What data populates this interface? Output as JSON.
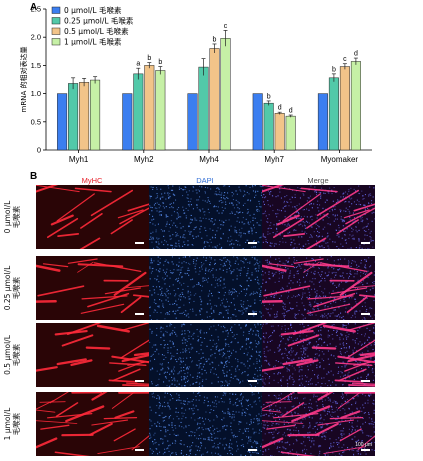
{
  "panelA": {
    "label": "A",
    "chart_data": {
      "type": "bar",
      "ylabel": "mRNA 的相对表达量",
      "ylim": [
        0,
        2.5
      ],
      "yticks": [
        "0",
        "0.5",
        "1.0",
        "1.5",
        "2.0",
        "2.5"
      ],
      "categories": [
        "Myh1",
        "Myh2",
        "Myh4",
        "Myh7",
        "Myomaker"
      ],
      "legend_position": "top-left",
      "series": [
        {
          "name": "0 μmol/L 毛喉素",
          "color": "#3b7ef0",
          "values": [
            1.0,
            1.0,
            1.0,
            1.0,
            1.0
          ],
          "errors": [
            0,
            0,
            0,
            0,
            0
          ],
          "sig": [
            "",
            "",
            "",
            "",
            ""
          ]
        },
        {
          "name": "0.25 μmol/L 毛喉素",
          "color": "#52c9a9",
          "values": [
            1.18,
            1.35,
            1.47,
            0.83,
            1.28
          ],
          "errors": [
            0.1,
            0.1,
            0.15,
            0.04,
            0.07
          ],
          "sig": [
            "",
            "a",
            "",
            "b",
            "b"
          ]
        },
        {
          "name": "0.5 μmol/L 毛喉素",
          "color": "#f2c489",
          "values": [
            1.2,
            1.5,
            1.8,
            0.65,
            1.48
          ],
          "errors": [
            0.07,
            0.05,
            0.08,
            0.02,
            0.05
          ],
          "sig": [
            "",
            "b",
            "b",
            "d",
            "c"
          ]
        },
        {
          "name": "1 μmol/L 毛喉素",
          "color": "#c6f0a6",
          "values": [
            1.24,
            1.41,
            1.98,
            0.6,
            1.57
          ],
          "errors": [
            0.06,
            0.07,
            0.14,
            0.02,
            0.06
          ],
          "sig": [
            "",
            "b",
            "c",
            "d",
            "d"
          ]
        }
      ]
    }
  },
  "panelB": {
    "label": "B",
    "columns": [
      {
        "label": "MyHC",
        "color": "#e8222c"
      },
      {
        "label": "DAPI",
        "color": "#3470d6"
      },
      {
        "label": "Merge",
        "color": "#555555"
      }
    ],
    "rows": [
      "0 μmol/L\n毛喉素",
      "0.25 μmol/L\n毛喉素",
      "0.5 μmol/L\n毛喉素",
      "1 μmol/L\n毛喉素"
    ],
    "scale_label": "100 μm"
  }
}
